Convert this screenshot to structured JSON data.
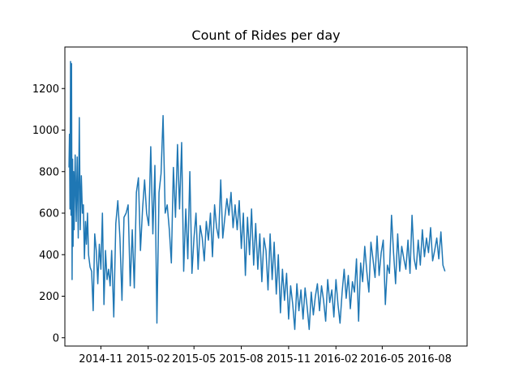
{
  "chart_data": {
    "type": "line",
    "title": "Count of Rides per day",
    "xlabel": "",
    "ylabel": "",
    "ylim": [
      -40,
      1400
    ],
    "xlim": [
      "2014-08-23",
      "2016-10-13"
    ],
    "x_ticks": [
      "2014-11",
      "2015-02",
      "2015-05",
      "2015-08",
      "2015-11",
      "2016-02",
      "2016-05",
      "2016-08"
    ],
    "y_ticks": [
      0,
      200,
      400,
      600,
      800,
      1000,
      1200
    ],
    "grid": false,
    "legend": "none",
    "color": "#1f77b4",
    "series": [
      {
        "x": [
          "2014-08-31",
          "2014-09-01",
          "2014-09-02",
          "2014-09-03",
          "2014-09-04",
          "2014-09-05",
          "2014-09-06",
          "2014-09-07",
          "2014-09-08",
          "2014-09-09",
          "2014-09-10",
          "2014-09-12",
          "2014-09-14",
          "2014-09-16",
          "2014-09-18",
          "2014-09-20",
          "2014-09-22",
          "2014-09-24",
          "2014-09-26",
          "2014-09-28",
          "2014-09-30",
          "2014-10-02",
          "2014-10-04",
          "2014-10-06",
          "2014-10-08",
          "2014-10-11",
          "2014-10-14",
          "2014-10-17",
          "2014-10-20",
          "2014-10-23",
          "2014-10-26",
          "2014-10-29",
          "2014-11-01",
          "2014-11-04",
          "2014-11-07",
          "2014-11-10",
          "2014-11-13",
          "2014-11-16",
          "2014-11-19",
          "2014-11-22",
          "2014-11-26",
          "2014-11-30",
          "2014-12-04",
          "2014-12-08",
          "2014-12-12",
          "2014-12-16",
          "2014-12-20",
          "2014-12-24",
          "2014-12-28",
          "2015-01-01",
          "2015-01-05",
          "2015-01-09",
          "2015-01-13",
          "2015-01-17",
          "2015-01-21",
          "2015-01-25",
          "2015-01-29",
          "2015-02-02",
          "2015-02-06",
          "2015-02-10",
          "2015-02-14",
          "2015-02-18",
          "2015-02-22",
          "2015-02-26",
          "2015-03-02",
          "2015-03-06",
          "2015-03-10",
          "2015-03-14",
          "2015-03-18",
          "2015-03-22",
          "2015-03-26",
          "2015-03-30",
          "2015-04-03",
          "2015-04-07",
          "2015-04-11",
          "2015-04-15",
          "2015-04-19",
          "2015-04-23",
          "2015-04-27",
          "2015-05-01",
          "2015-05-05",
          "2015-05-09",
          "2015-05-13",
          "2015-05-17",
          "2015-05-21",
          "2015-05-25",
          "2015-05-29",
          "2015-06-02",
          "2015-06-06",
          "2015-06-10",
          "2015-06-14",
          "2015-06-18",
          "2015-06-22",
          "2015-06-26",
          "2015-06-30",
          "2015-07-04",
          "2015-07-08",
          "2015-07-12",
          "2015-07-16",
          "2015-07-20",
          "2015-07-24",
          "2015-07-28",
          "2015-08-01",
          "2015-08-05",
          "2015-08-09",
          "2015-08-13",
          "2015-08-17",
          "2015-08-21",
          "2015-08-25",
          "2015-08-29",
          "2015-09-02",
          "2015-09-06",
          "2015-09-10",
          "2015-09-14",
          "2015-09-18",
          "2015-09-22",
          "2015-09-26",
          "2015-09-30",
          "2015-10-04",
          "2015-10-08",
          "2015-10-12",
          "2015-10-16",
          "2015-10-20",
          "2015-10-24",
          "2015-10-28",
          "2015-11-01",
          "2015-11-05",
          "2015-11-09",
          "2015-11-13",
          "2015-11-17",
          "2015-11-21",
          "2015-11-25",
          "2015-11-29",
          "2015-12-03",
          "2015-12-07",
          "2015-12-11",
          "2015-12-15",
          "2015-12-19",
          "2015-12-23",
          "2015-12-27",
          "2015-12-31",
          "2016-01-04",
          "2016-01-08",
          "2016-01-12",
          "2016-01-16",
          "2016-01-20",
          "2016-01-24",
          "2016-01-28",
          "2016-02-01",
          "2016-02-05",
          "2016-02-09",
          "2016-02-13",
          "2016-02-17",
          "2016-02-21",
          "2016-02-25",
          "2016-02-29",
          "2016-03-04",
          "2016-03-08",
          "2016-03-12",
          "2016-03-16",
          "2016-03-20",
          "2016-03-24",
          "2016-03-28",
          "2016-04-01",
          "2016-04-05",
          "2016-04-09",
          "2016-04-13",
          "2016-04-17",
          "2016-04-21",
          "2016-04-25",
          "2016-04-29",
          "2016-05-03",
          "2016-05-07",
          "2016-05-11",
          "2016-05-15",
          "2016-05-19",
          "2016-05-23",
          "2016-05-27",
          "2016-05-31",
          "2016-06-04",
          "2016-06-08",
          "2016-06-12",
          "2016-06-16",
          "2016-06-20",
          "2016-06-24",
          "2016-06-28",
          "2016-07-02",
          "2016-07-06",
          "2016-07-10",
          "2016-07-14",
          "2016-07-18",
          "2016-07-22",
          "2016-07-26",
          "2016-07-30",
          "2016-08-03",
          "2016-08-07",
          "2016-08-11",
          "2016-08-15",
          "2016-08-19",
          "2016-08-23",
          "2016-08-27",
          "2016-08-31"
        ],
        "values": [
          820,
          980,
          620,
          1330,
          590,
          1320,
          280,
          860,
          440,
          800,
          520,
          880,
          560,
          870,
          480,
          1060,
          520,
          780,
          600,
          640,
          380,
          560,
          450,
          600,
          400,
          340,
          320,
          130,
          500,
          420,
          260,
          450,
          330,
          600,
          160,
          420,
          280,
          330,
          250,
          420,
          100,
          550,
          660,
          480,
          180,
          580,
          600,
          640,
          250,
          520,
          240,
          700,
          770,
          420,
          620,
          760,
          600,
          540,
          920,
          500,
          830,
          70,
          700,
          790,
          1070,
          600,
          640,
          520,
          360,
          820,
          580,
          930,
          620,
          940,
          320,
          620,
          380,
          800,
          310,
          480,
          600,
          330,
          540,
          480,
          370,
          560,
          470,
          600,
          390,
          640,
          530,
          480,
          760,
          480,
          580,
          670,
          590,
          700,
          530,
          640,
          520,
          660,
          430,
          600,
          300,
          580,
          400,
          620,
          350,
          550,
          330,
          500,
          270,
          480,
          420,
          230,
          500,
          280,
          460,
          210,
          400,
          120,
          330,
          180,
          310,
          90,
          250,
          160,
          40,
          260,
          130,
          230,
          90,
          240,
          150,
          40,
          220,
          110,
          200,
          260,
          130,
          250,
          180,
          80,
          280,
          170,
          230,
          100,
          280,
          160,
          70,
          220,
          330,
          190,
          300,
          140,
          270,
          220,
          380,
          80,
          360,
          270,
          440,
          320,
          220,
          460,
          380,
          290,
          490,
          300,
          410,
          470,
          160,
          350,
          310,
          590,
          410,
          260,
          500,
          320,
          440,
          380,
          330,
          470,
          310,
          590,
          380,
          330,
          470,
          350,
          520,
          390,
          480,
          410,
          530,
          370,
          420,
          480,
          380,
          510,
          350,
          320
        ]
      }
    ]
  }
}
